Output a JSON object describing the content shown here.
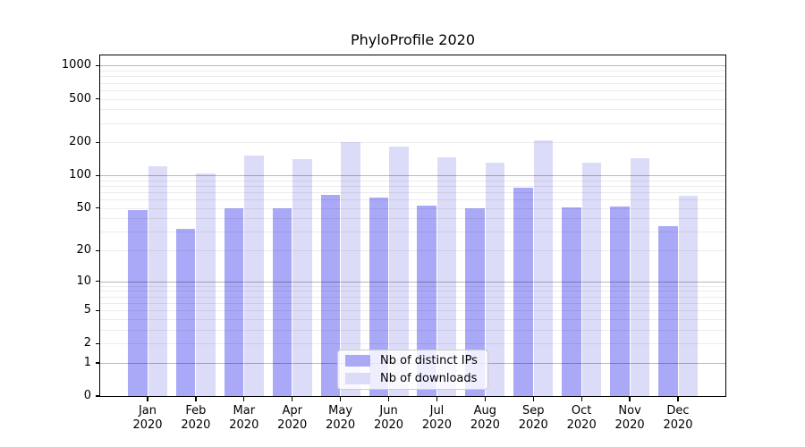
{
  "title": "PhyloProfile 2020",
  "legend": {
    "items": [
      {
        "label": "Nb of distinct IPs",
        "color": "#a9a9f8"
      },
      {
        "label": "Nb of downloads",
        "color": "#dcdcf8"
      }
    ]
  },
  "chart_data": {
    "type": "bar",
    "title": "PhyloProfile 2020",
    "categories": [
      "Jan 2020",
      "Feb 2020",
      "Mar 2020",
      "Apr 2020",
      "May 2020",
      "Jun 2020",
      "Jul 2020",
      "Aug 2020",
      "Sep 2020",
      "Oct 2020",
      "Nov 2020",
      "Dec 2020"
    ],
    "series": [
      {
        "name": "Nb of distinct IPs",
        "color": "#a9a9f8",
        "values": [
          48,
          32,
          50,
          50,
          66,
          62,
          53,
          50,
          77,
          51,
          52,
          34
        ]
      },
      {
        "name": "Nb of downloads",
        "color": "#dcdcf8",
        "values": [
          121,
          105,
          152,
          140,
          200,
          185,
          145,
          130,
          208,
          130,
          143,
          65
        ]
      }
    ],
    "xlabel": "",
    "ylabel": "",
    "yscale": "log1p",
    "yticks": [
      0,
      1,
      2,
      5,
      10,
      20,
      50,
      100,
      200,
      500,
      1000
    ],
    "ylim": [
      0,
      1240
    ],
    "grid": {
      "major_lines": [
        1,
        10,
        100,
        1000
      ],
      "minor_decades": [
        1,
        10,
        100
      ],
      "minor_multipliers": [
        2,
        3,
        4,
        5,
        6,
        7,
        8,
        9
      ]
    },
    "legend_position": "lower center"
  }
}
